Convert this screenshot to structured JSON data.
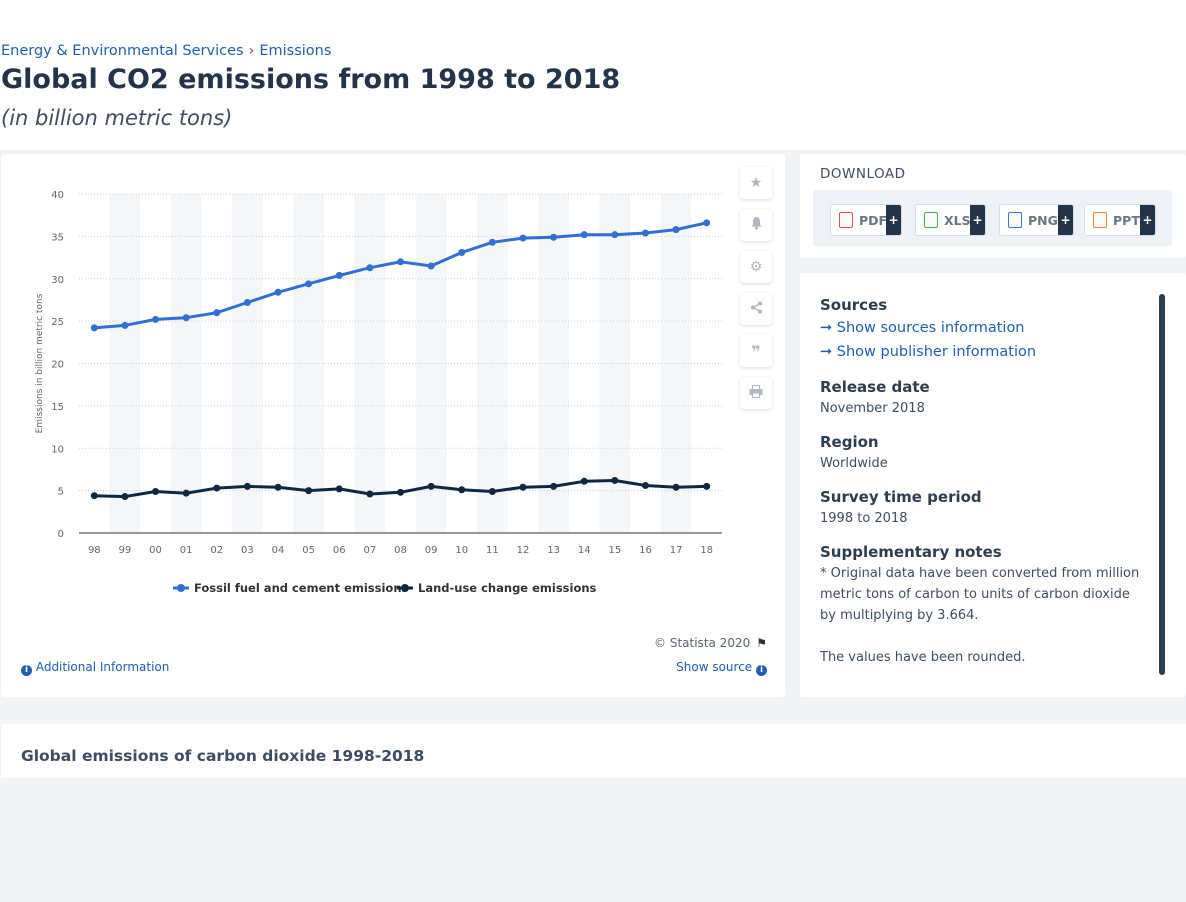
{
  "breadcrumb": {
    "item1": "Energy & Environmental Services",
    "separator": "›",
    "item2": "Emissions"
  },
  "page_title": "Global CO2 emissions from 1998 to 2018",
  "page_subtitle": "(in billion metric tons)",
  "tools": [
    "star-icon",
    "bell-icon",
    "gear-icon",
    "share-icon",
    "quote-icon",
    "print-icon"
  ],
  "copyright": "© Statista 2020",
  "additional_info": "Additional Information",
  "show_source": "Show source",
  "download": {
    "title": "DOWNLOAD",
    "formats": [
      {
        "label": "PDF",
        "color": "#d9534f"
      },
      {
        "label": "XLS",
        "color": "#4cae4c"
      },
      {
        "label": "PNG",
        "color": "#3a78c2"
      },
      {
        "label": "PPT",
        "color": "#e8862d"
      }
    ],
    "plus": "+"
  },
  "meta": {
    "sources_heading": "Sources",
    "show_sources": "Show sources information",
    "show_publisher": "Show publisher information",
    "release_heading": "Release date",
    "release_value": "November 2018",
    "region_heading": "Region",
    "region_value": "Worldwide",
    "survey_heading": "Survey time period",
    "survey_value": "1998 to 2018",
    "notes_heading": "Supplementary notes",
    "note1": "* Original data have been converted from million metric tons of carbon to units of carbon dioxide by multiplying by 3.664.",
    "note2": "The values have been rounded."
  },
  "description_title": "Global emissions of carbon dioxide 1998-2018",
  "chart_data": {
    "type": "line",
    "title": "",
    "xlabel": "",
    "ylabel": "Emissions in billion metric tons",
    "categories": [
      "98",
      "99",
      "00",
      "01",
      "02",
      "03",
      "04",
      "05",
      "06",
      "07",
      "08",
      "09",
      "10",
      "11",
      "12",
      "13",
      "14",
      "15",
      "16",
      "17",
      "18"
    ],
    "ylim": [
      0,
      40
    ],
    "yticks": [
      0,
      5,
      10,
      15,
      20,
      25,
      30,
      35,
      40
    ],
    "grid": true,
    "legend_position": "bottom",
    "series": [
      {
        "name": "Fossil fuel and cement emissions",
        "color": "#2f6fd6",
        "values": [
          24.2,
          24.5,
          25.2,
          25.4,
          26.0,
          27.2,
          28.4,
          29.4,
          30.4,
          31.3,
          32.0,
          31.5,
          33.1,
          34.3,
          34.8,
          34.9,
          35.2,
          35.2,
          35.4,
          35.8,
          36.6
        ]
      },
      {
        "name": "Land-use change emissions",
        "color": "#0e2842",
        "values": [
          4.4,
          4.3,
          4.9,
          4.7,
          5.3,
          5.5,
          5.4,
          5.0,
          5.2,
          4.6,
          4.8,
          5.5,
          5.1,
          4.9,
          5.4,
          5.5,
          6.1,
          6.2,
          5.6,
          5.4,
          5.5
        ]
      }
    ]
  }
}
